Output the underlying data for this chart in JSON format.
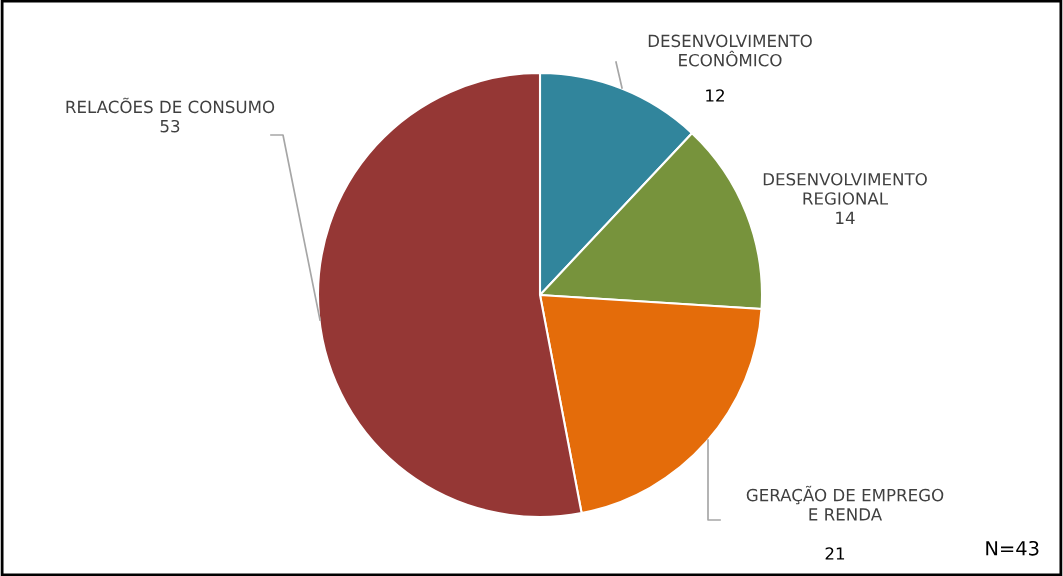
{
  "chart_data": {
    "type": "pie",
    "categories": [
      "DESENVOLVIMENTO\nECONÔMICO",
      "DESENVOLVIMENTO\nREGIONAL",
      "GERAÇÃO DE EMPREGO\nE RENDA",
      "RELACÕES DE CONSUMO"
    ],
    "values": [
      12,
      14,
      21,
      53
    ],
    "colors": [
      "#31859c",
      "#77933c",
      "#e46c0a",
      "#953735"
    ],
    "data_labels": true,
    "annotations": [
      "N=43"
    ]
  }
}
